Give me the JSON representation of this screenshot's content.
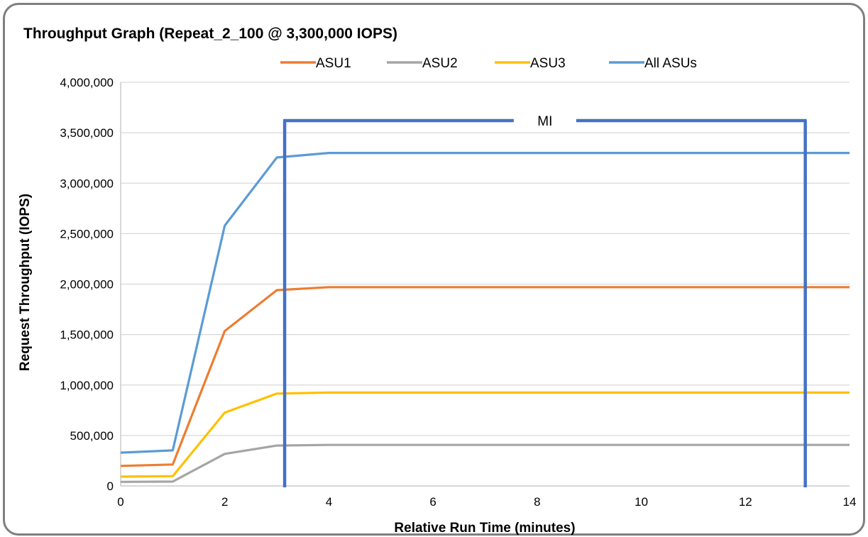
{
  "chart_data": {
    "type": "line",
    "title": "Throughput Graph (Repeat_2_100 @ 3,300,000 IOPS)",
    "xlabel": "Relative Run Time (minutes)",
    "ylabel": "Request Throughput (IOPS)",
    "xlim": [
      0,
      14
    ],
    "ylim": [
      0,
      4000000
    ],
    "x_ticks": [
      "0",
      "2",
      "4",
      "6",
      "8",
      "10",
      "12",
      "14"
    ],
    "y_ticks": [
      "0",
      "500,000",
      "1,000,000",
      "1,500,000",
      "2,000,000",
      "2,500,000",
      "3,000,000",
      "3,500,000",
      "4,000,000"
    ],
    "grid": true,
    "legend_position": "top",
    "x": [
      0,
      1,
      2,
      3,
      4,
      5,
      6,
      7,
      8,
      9,
      10,
      11,
      12,
      13,
      14
    ],
    "series": [
      {
        "name": "ASU1",
        "color": "#ED7D31",
        "values": [
          198000,
          212000,
          1535000,
          1940000,
          1970000,
          1970000,
          1970000,
          1970000,
          1970000,
          1970000,
          1970000,
          1970000,
          1970000,
          1970000,
          1970000
        ]
      },
      {
        "name": "ASU2",
        "color": "#A5A5A5",
        "values": [
          40000,
          43000,
          318000,
          400000,
          406000,
          406000,
          406000,
          406000,
          406000,
          406000,
          406000,
          406000,
          406000,
          406000,
          406000
        ]
      },
      {
        "name": "ASU3",
        "color": "#FFC000",
        "values": [
          92000,
          97000,
          727000,
          915000,
          925000,
          925000,
          925000,
          925000,
          925000,
          925000,
          925000,
          925000,
          925000,
          925000,
          925000
        ]
      },
      {
        "name": "All ASUs",
        "color": "#5B9BD5",
        "values": [
          330000,
          352000,
          2580000,
          3255000,
          3300000,
          3300000,
          3300000,
          3300000,
          3300000,
          3300000,
          3300000,
          3300000,
          3300000,
          3300000,
          3300000
        ]
      }
    ],
    "annotations": [
      {
        "label": "MI",
        "x_start": 3.15,
        "x_end": 13.15,
        "y_top": 3620000,
        "color": "#4472C4"
      }
    ]
  }
}
